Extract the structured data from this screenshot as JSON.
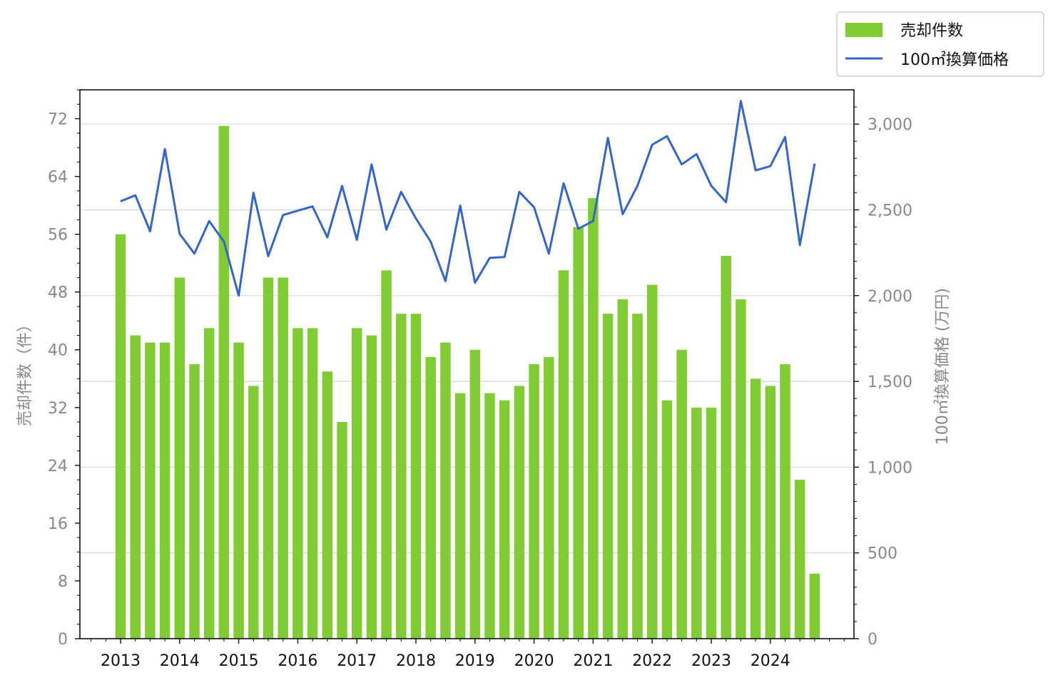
{
  "chart_data": {
    "type": "bar",
    "x": [
      "2013-01",
      "2013-04",
      "2013-07",
      "2013-10",
      "2014-01",
      "2014-04",
      "2014-07",
      "2014-10",
      "2015-01",
      "2015-04",
      "2015-07",
      "2015-10",
      "2016-01",
      "2016-04",
      "2016-07",
      "2016-10",
      "2017-01",
      "2017-04",
      "2017-07",
      "2017-10",
      "2018-01",
      "2018-04",
      "2018-07",
      "2018-10",
      "2019-01",
      "2019-04",
      "2019-07",
      "2019-10",
      "2020-01",
      "2020-04",
      "2020-07",
      "2020-10",
      "2021-01",
      "2021-04",
      "2021-07",
      "2021-10",
      "2022-01",
      "2022-04",
      "2022-07",
      "2022-10",
      "2023-01",
      "2023-04",
      "2023-07",
      "2023-10",
      "2024-01",
      "2024-04",
      "2024-07",
      "2024-10"
    ],
    "series": [
      {
        "name": "売却件数",
        "axis": "left",
        "kind": "bar",
        "color": "#80cc33",
        "values": [
          56,
          42,
          41,
          41,
          50,
          38,
          43,
          71,
          41,
          35,
          50,
          50,
          43,
          43,
          37,
          30,
          43,
          42,
          51,
          45,
          45,
          39,
          41,
          34,
          40,
          34,
          33,
          35,
          38,
          39,
          51,
          57,
          61,
          45,
          47,
          45,
          49,
          33,
          40,
          32,
          32,
          53,
          47,
          36,
          35,
          38,
          22,
          9
        ]
      },
      {
        "name": "100㎡換算価格",
        "axis": "right",
        "kind": "line",
        "color": "#3366cc",
        "values": [
          2550,
          2585,
          2375,
          2855,
          2360,
          2245,
          2435,
          2315,
          2000,
          2600,
          2230,
          2470,
          2495,
          2520,
          2340,
          2640,
          2325,
          2765,
          2385,
          2605,
          2450,
          2315,
          2085,
          2525,
          2075,
          2220,
          2225,
          2605,
          2515,
          2245,
          2655,
          2390,
          2435,
          2920,
          2475,
          2640,
          2880,
          2930,
          2765,
          2825,
          2640,
          2545,
          3135,
          2730,
          2755,
          2925,
          2295,
          2770
        ]
      }
    ],
    "x_ticks": [
      "2013",
      "2014",
      "2015",
      "2016",
      "2017",
      "2018",
      "2019",
      "2020",
      "2021",
      "2022",
      "2023",
      "2024"
    ],
    "left_axis": {
      "label": "売却件数（件）",
      "ylim": [
        0,
        76
      ],
      "ticks": [
        "0",
        "8",
        "16",
        "24",
        "32",
        "40",
        "48",
        "56",
        "64",
        "72"
      ]
    },
    "right_axis": {
      "label": "100㎡換算価格 (万円)",
      "ylim": [
        0,
        3200
      ],
      "ticks": [
        "0",
        "500",
        "1,000",
        "1,500",
        "2,000",
        "2,500",
        "3,000"
      ]
    },
    "grid": "horizontal at right-axis ticks",
    "legend_placement": "top-right, above plot",
    "colors": {
      "axis_text": "#888888",
      "x_tick_text": "#111111",
      "grid": "#d9d9d9"
    }
  }
}
